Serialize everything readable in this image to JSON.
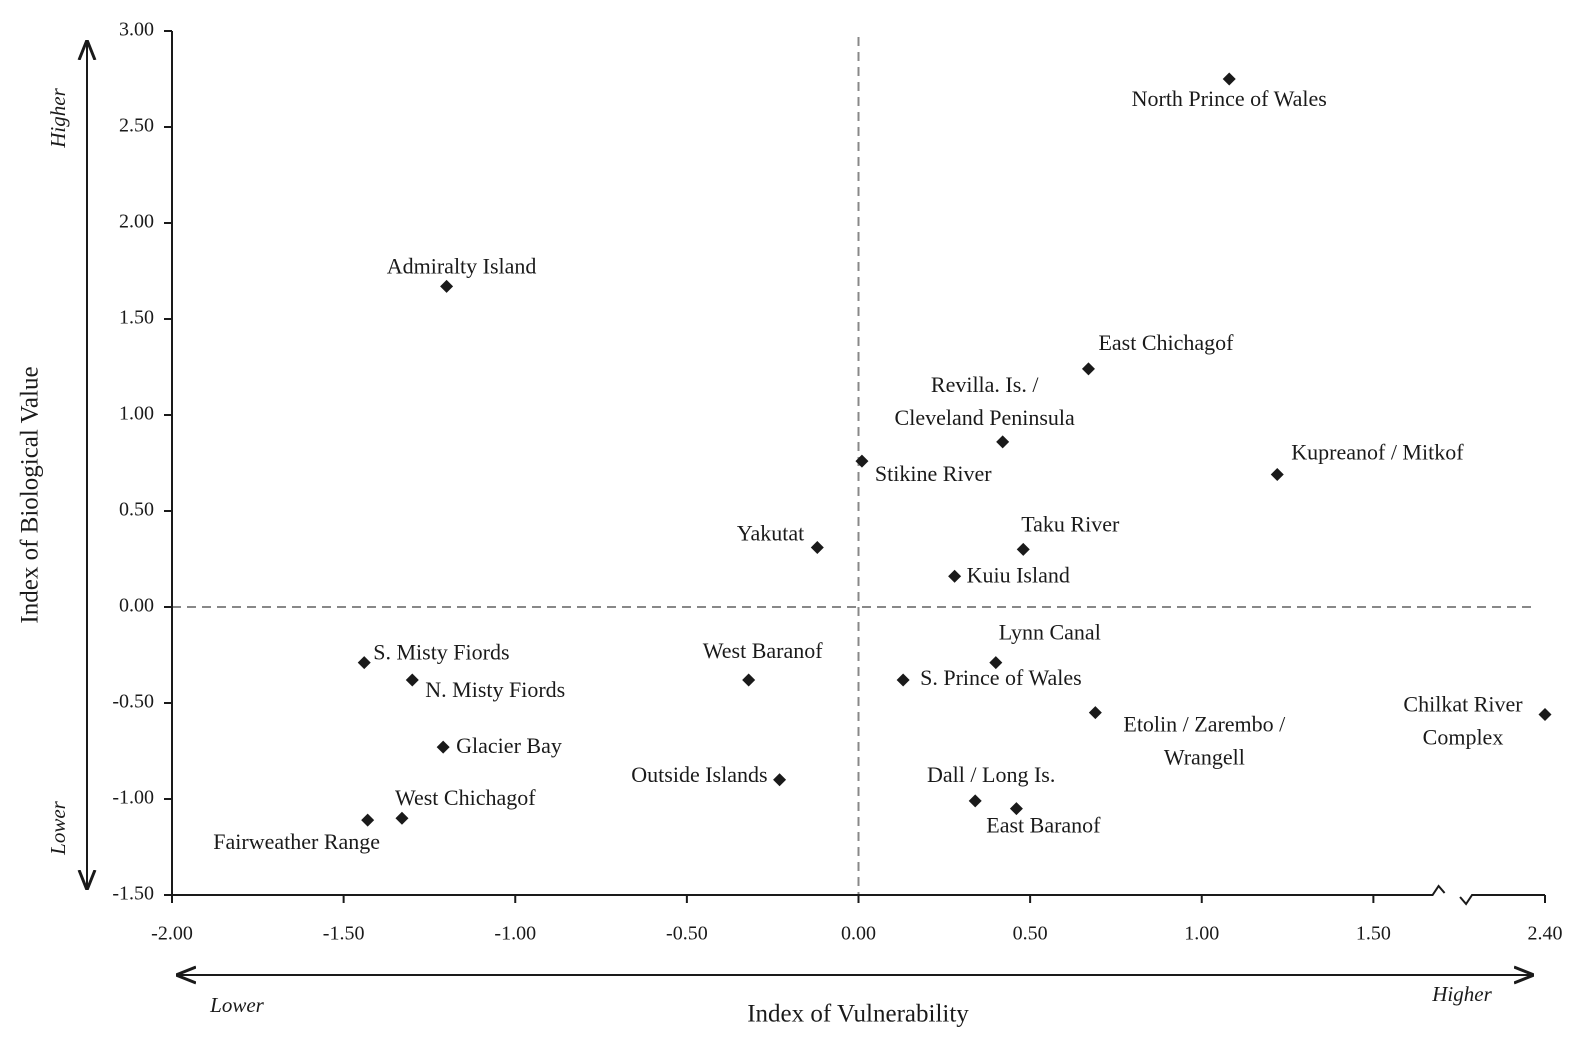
{
  "chart_data": {
    "type": "scatter",
    "xlabel": "Index of Vulnerability",
    "ylabel": "Index of Biological Value",
    "annotations": {
      "y_high": "Higher",
      "y_low": "Lower",
      "x_low": "Lower",
      "x_high": "Higher"
    },
    "labels": [
      "North Prince of Wales",
      "Admiralty Island",
      "East Chichagof",
      [
        "Revilla. Is. /",
        "Cleveland Peninsula"
      ],
      "Stikine River",
      "Kupreanof / Mitkof",
      "Yakutat",
      "Taku River",
      "Kuiu Island",
      "S. Misty Fiords",
      "N. Misty Fiords",
      "West Baranof",
      "Lynn Canal",
      "S. Prince of Wales",
      [
        "Etolin / Zarembo /",
        "Wrangell"
      ],
      [
        "Chilkat River",
        "Complex"
      ],
      "Glacier Bay",
      "Outside Islands",
      "Dall / Long Is.",
      "East Baranof",
      "West Chichagof",
      "Fairweather Range"
    ],
    "x": [
      1.08,
      -1.2,
      0.67,
      0.42,
      0.01,
      1.22,
      -0.12,
      0.48,
      0.28,
      -1.44,
      -1.3,
      -0.32,
      0.4,
      0.13,
      0.69,
      2.4,
      -1.21,
      -0.23,
      0.34,
      0.46,
      -1.33,
      -1.43
    ],
    "values": [
      2.75,
      1.67,
      1.24,
      0.86,
      0.76,
      0.69,
      0.31,
      0.3,
      0.16,
      -0.29,
      -0.38,
      -0.38,
      -0.29,
      -0.38,
      -0.55,
      -0.56,
      -0.73,
      -0.9,
      -1.01,
      -1.05,
      -1.1,
      -1.11
    ],
    "color": "#1a1a1a",
    "xlim": [
      -2.0,
      2.4
    ],
    "ylim": [
      -1.5,
      3.0
    ],
    "xticks": [
      {
        "value": -2.0,
        "label": "-2.00"
      },
      {
        "value": -1.5,
        "label": "-1.50"
      },
      {
        "value": -1.0,
        "label": "-1.00"
      },
      {
        "value": -0.5,
        "label": "-0.50"
      },
      {
        "value": 0,
        "label": "0.00"
      },
      {
        "value": 0.5,
        "label": "0.50"
      },
      {
        "value": 1.0,
        "label": "1.00"
      },
      {
        "value": 1.5,
        "label": "1.50"
      },
      {
        "value": 2.4,
        "label": "2.40"
      }
    ],
    "yticks": [
      {
        "value": -1.5,
        "label": "-1.50"
      },
      {
        "value": -1.0,
        "label": "-1.00"
      },
      {
        "value": -0.5,
        "label": "-0.50"
      },
      {
        "value": 0,
        "label": "0.00"
      },
      {
        "value": 0.5,
        "label": "0.50"
      },
      {
        "value": 1.0,
        "label": "1.00"
      },
      {
        "value": 1.5,
        "label": "1.50"
      },
      {
        "value": 2.0,
        "label": "2.00"
      },
      {
        "value": 2.5,
        "label": "2.50"
      },
      {
        "value": 3.0,
        "label": "3.00"
      }
    ],
    "reference_lines": {
      "x": [
        0
      ],
      "y": [
        0
      ]
    },
    "x_axis_break": true
  }
}
